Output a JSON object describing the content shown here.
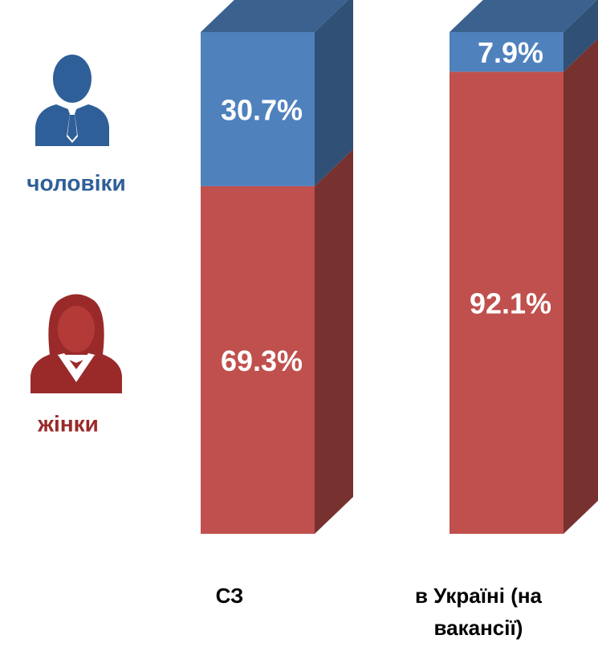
{
  "chart_data": {
    "type": "stacked_bar_3d",
    "categories": [
      "СЗ",
      "в Україні (на вакансії)"
    ],
    "ylim": [
      0,
      100
    ],
    "series": [
      {
        "name": "жінки",
        "color": "#c0504d",
        "values": [
          69.3,
          92.1
        ],
        "value_labels": [
          "69.3%",
          "92.1%"
        ]
      },
      {
        "name": "чоловіки",
        "color": "#4f81bd",
        "values": [
          30.7,
          7.9
        ],
        "value_labels": [
          "30.7%",
          "7.9%"
        ]
      }
    ]
  }
}
